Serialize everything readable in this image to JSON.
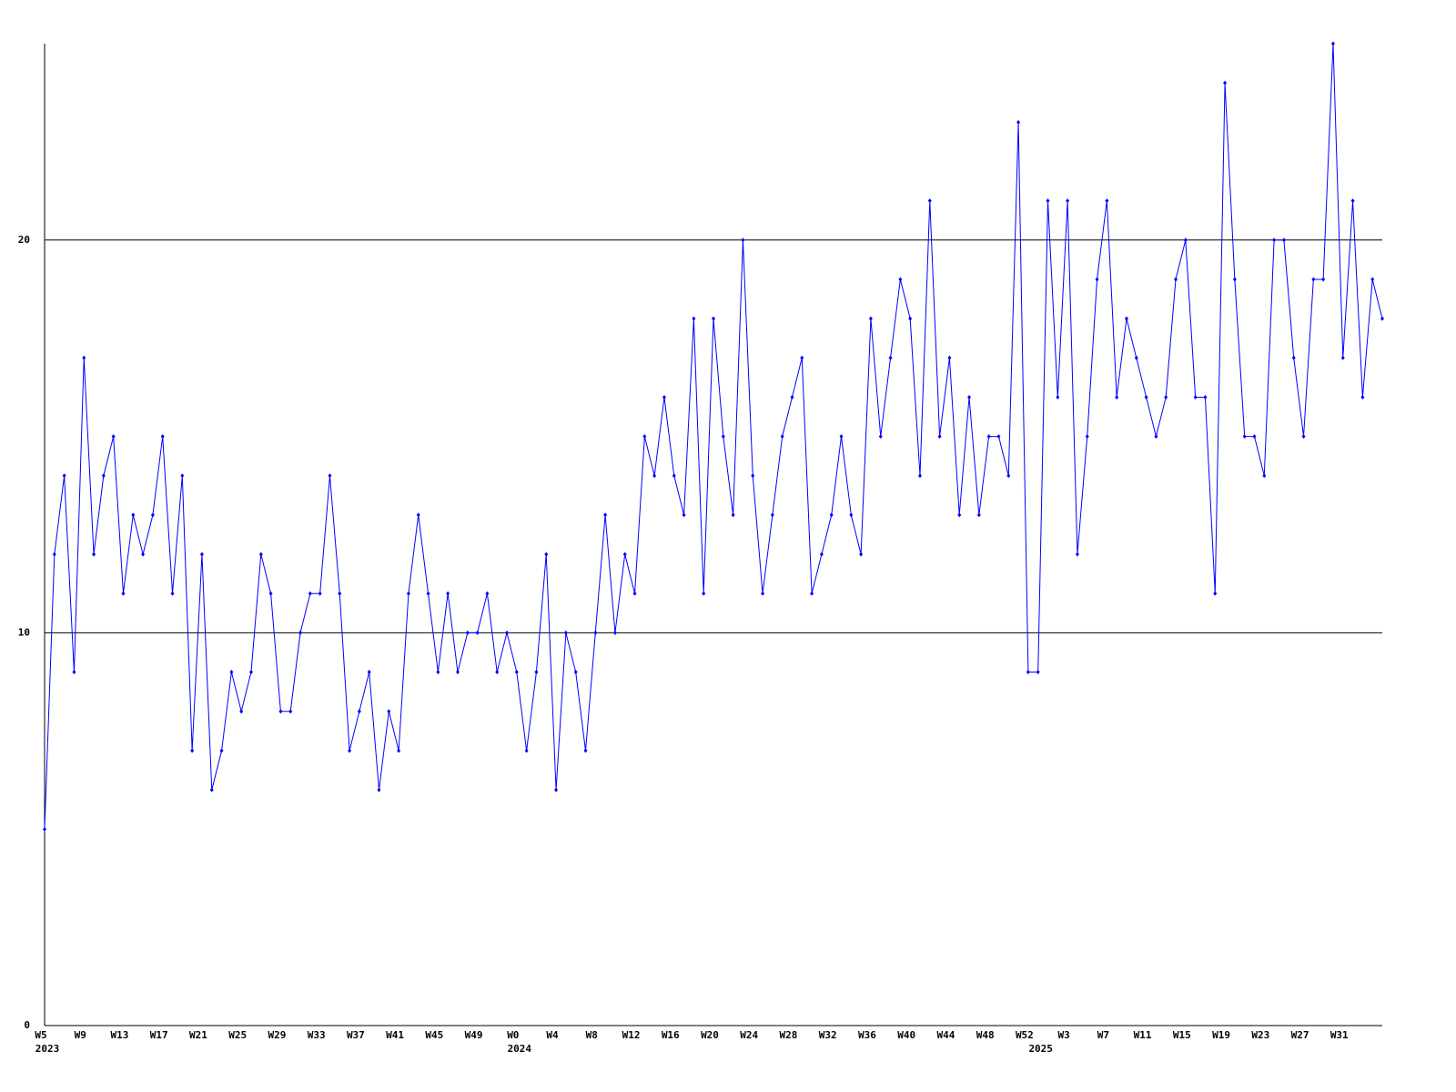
{
  "chart_data": {
    "type": "line",
    "color": "#0000ff",
    "grid": true,
    "ylim": [
      0,
      25
    ],
    "yticks": [
      0,
      10,
      20
    ],
    "values": [
      5,
      12,
      14,
      9,
      17,
      12,
      14,
      15,
      11,
      13,
      12,
      13,
      15,
      11,
      14,
      7,
      12,
      6,
      7,
      9,
      8,
      9,
      12,
      11,
      8,
      8,
      10,
      11,
      11,
      14,
      11,
      7,
      8,
      9,
      6,
      8,
      7,
      11,
      13,
      11,
      9,
      11,
      9,
      10,
      10,
      11,
      9,
      10,
      9,
      7,
      9,
      12,
      6,
      10,
      9,
      7,
      10,
      13,
      10,
      12,
      11,
      15,
      14,
      16,
      14,
      13,
      18,
      11,
      18,
      15,
      13,
      20,
      14,
      11,
      13,
      15,
      16,
      17,
      11,
      12,
      13,
      15,
      13,
      12,
      18,
      15,
      17,
      19,
      18,
      14,
      21,
      15,
      17,
      13,
      16,
      13,
      15,
      15,
      14,
      23,
      9,
      9,
      21,
      16,
      21,
      12,
      15,
      19,
      21,
      16,
      18,
      17,
      16,
      15,
      16,
      19,
      20,
      16,
      16,
      11,
      24,
      19,
      15,
      15,
      14,
      20,
      20,
      17,
      15,
      19,
      19,
      25,
      17,
      21,
      16,
      19,
      18
    ],
    "categories": [
      "W5",
      null,
      null,
      null,
      "W9",
      null,
      null,
      null,
      "W13",
      null,
      null,
      null,
      "W17",
      null,
      null,
      null,
      "W21",
      null,
      null,
      null,
      "W25",
      null,
      null,
      null,
      "W29",
      null,
      null,
      null,
      "W33",
      null,
      null,
      null,
      "W37",
      null,
      null,
      null,
      "W41",
      null,
      null,
      null,
      "W45",
      null,
      null,
      null,
      "W49",
      null,
      null,
      null,
      "W0",
      null,
      null,
      null,
      "W4",
      null,
      null,
      null,
      "W8",
      null,
      null,
      null,
      "W12",
      null,
      null,
      null,
      "W16",
      null,
      null,
      null,
      "W20",
      null,
      null,
      null,
      "W24",
      null,
      null,
      null,
      "W28",
      null,
      null,
      null,
      "W32",
      null,
      null,
      null,
      "W36",
      null,
      null,
      null,
      "W40",
      null,
      null,
      null,
      "W44",
      null,
      null,
      null,
      "W48",
      null,
      null,
      null,
      "W52",
      null,
      null,
      null,
      "W3",
      null,
      null,
      null,
      "W7",
      null,
      null,
      null,
      "W11",
      null,
      null,
      null,
      "W15",
      null,
      null,
      null,
      "W19",
      null,
      null,
      null,
      "W23",
      null,
      null,
      null,
      "W27",
      null,
      null,
      null,
      "W31",
      null,
      null,
      null,
      null
    ],
    "category_years": [
      "2023",
      null,
      null,
      null,
      null,
      null,
      null,
      null,
      null,
      null,
      null,
      null,
      null,
      null,
      null,
      null,
      null,
      null,
      null,
      null,
      null,
      null,
      null,
      null,
      null,
      null,
      null,
      null,
      null,
      null,
      null,
      null,
      null,
      null,
      null,
      null,
      null,
      null,
      null,
      null,
      null,
      null,
      null,
      null,
      null,
      null,
      null,
      null,
      "2024",
      null,
      null,
      null,
      null,
      null,
      null,
      null,
      null,
      null,
      null,
      null,
      null,
      null,
      null,
      null,
      null,
      null,
      null,
      null,
      null,
      null,
      null,
      null,
      null,
      null,
      null,
      null,
      null,
      null,
      null,
      null,
      null,
      null,
      null,
      null,
      null,
      null,
      null,
      null,
      null,
      null,
      null,
      null,
      null,
      null,
      null,
      null,
      null,
      null,
      null,
      null,
      null,
      "2025",
      null,
      null,
      null,
      null,
      null,
      null,
      null,
      null,
      null,
      null,
      null,
      null,
      null,
      null,
      null,
      null,
      null,
      null,
      null,
      null,
      null,
      null,
      null,
      null,
      null,
      null,
      null,
      null,
      null,
      null,
      null,
      null,
      null,
      null,
      null
    ]
  }
}
